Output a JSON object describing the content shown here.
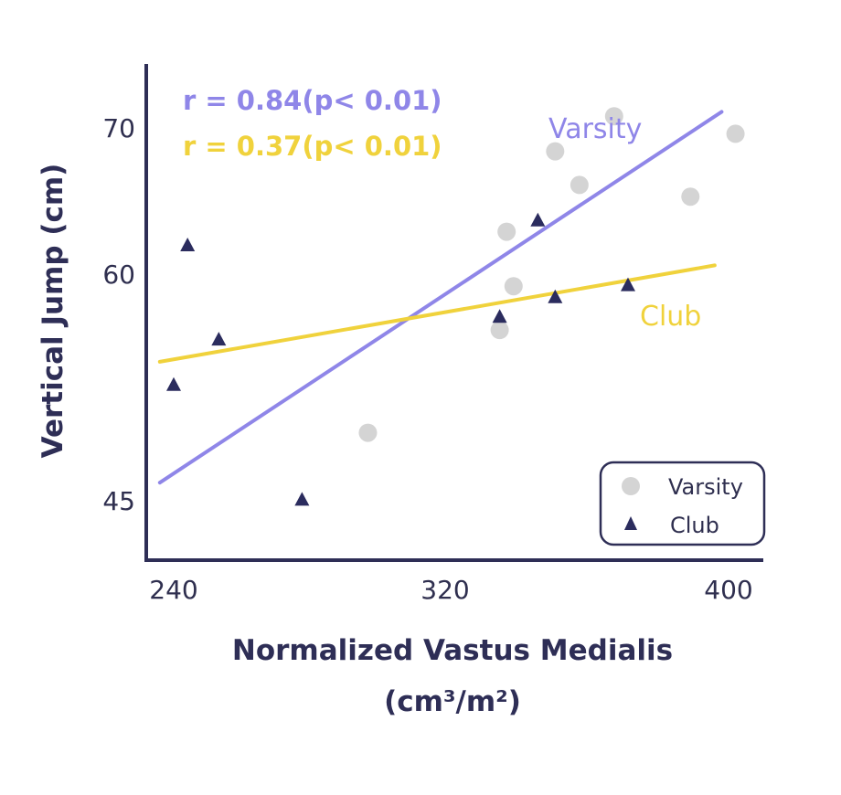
{
  "chart_data": {
    "type": "scatter",
    "xlabel": [
      "Normalized Vastus Medialis",
      "(cm³/m²)"
    ],
    "ylabel": "Vertical Jump (cm)",
    "xticks": [
      "240",
      "320",
      "400"
    ],
    "yticks": [
      "45",
      "60",
      "70"
    ],
    "xlim": [
      225,
      407
    ],
    "y_scale": "nonlinear (tick labels 45, 60, 70)",
    "grid": false,
    "legend_position": "bottom-right",
    "series": [
      {
        "name": "Varsity",
        "marker": "circle",
        "color": "#d4d4d4",
        "points": [
          {
            "x": 296,
            "y": 49.5
          },
          {
            "x": 334,
            "y": 56.3
          },
          {
            "x": 338,
            "y": 59.2
          },
          {
            "x": 336,
            "y": 62.9
          },
          {
            "x": 350,
            "y": 68.4
          },
          {
            "x": 357,
            "y": 66.1
          },
          {
            "x": 367,
            "y": 70.8
          },
          {
            "x": 389,
            "y": 65.3
          },
          {
            "x": 402,
            "y": 69.6
          }
        ],
        "trendline": {
          "x": [
            236,
            398
          ],
          "y": [
            46.2,
            71.1
          ],
          "color": "#8f86e8"
        },
        "trendline_label": "Varsity",
        "correlation_text": "r = 0.84(p< 0.01)"
      },
      {
        "name": "Club",
        "marker": "triangle",
        "color": "#2b2c5e",
        "points": [
          {
            "x": 240,
            "y": 52.7
          },
          {
            "x": 244,
            "y": 62.0
          },
          {
            "x": 253,
            "y": 55.7
          },
          {
            "x": 277,
            "y": 45.1
          },
          {
            "x": 334,
            "y": 57.2
          },
          {
            "x": 345,
            "y": 63.7
          },
          {
            "x": 350,
            "y": 58.5
          },
          {
            "x": 371,
            "y": 59.3
          }
        ],
        "trendline": {
          "x": [
            236,
            396
          ],
          "y": [
            54.2,
            60.6
          ],
          "color": "#f0d23c"
        },
        "trendline_label": "Club",
        "correlation_text": "r = 0.37(p< 0.01)"
      }
    ],
    "legend": [
      "Varsity",
      "Club"
    ]
  },
  "colors": {
    "axis": "#2e2e56",
    "varsity_line": "#8f86e8",
    "club_line": "#f0d23c",
    "varsity_marker": "#d4d4d4",
    "club_marker": "#2b2c5e"
  }
}
